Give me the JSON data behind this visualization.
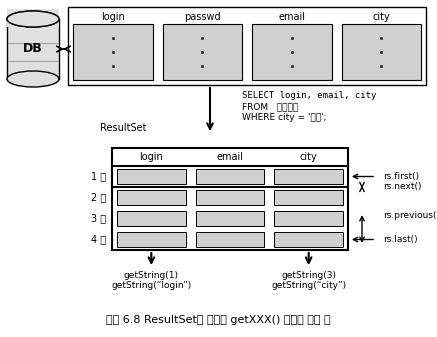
{
  "title": "그림 6.8 ResultSet의 결과와 getXXX() 메서드 사용 예",
  "db_label": "DB",
  "db_columns": [
    "login",
    "passwd",
    "email",
    "city"
  ],
  "sql_line1": "SELECT login, email, city",
  "sql_line2": "FROM   테이블명",
  "sql_line3": "WHERE city = '서울';",
  "resultset_label": "ResultSet",
  "rs_columns": [
    "login",
    "email",
    "city"
  ],
  "row_labels": [
    "1 행",
    "2 행",
    "3 행",
    "4 행"
  ],
  "rs_first": "rs.first()",
  "rs_next": "rs.next()",
  "rs_previous": "rs.previous()",
  "rs_last": "rs.last()",
  "getstring_left1": "getString(1)",
  "getstring_left2": "getString(“login”)",
  "getstring_right1": "getString(3)",
  "getstring_right2": "getString(“city”)",
  "bg_color": "#ffffff",
  "box_fill": "#d0d0d0",
  "box_edge": "#000000"
}
